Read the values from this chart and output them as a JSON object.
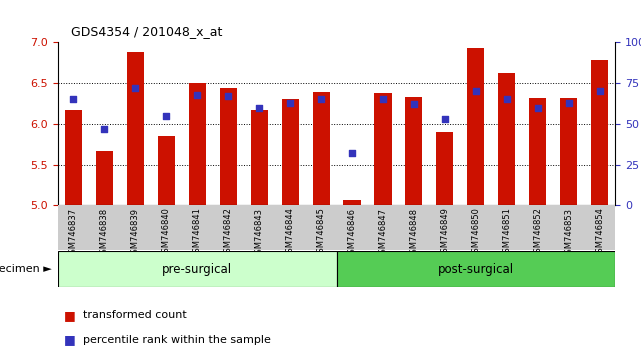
{
  "title": "GDS4354 / 201048_x_at",
  "samples": [
    "GSM746837",
    "GSM746838",
    "GSM746839",
    "GSM746840",
    "GSM746841",
    "GSM746842",
    "GSM746843",
    "GSM746844",
    "GSM746845",
    "GSM746846",
    "GSM746847",
    "GSM746848",
    "GSM746849",
    "GSM746850",
    "GSM746851",
    "GSM746852",
    "GSM746853",
    "GSM746854"
  ],
  "bar_values": [
    6.17,
    5.67,
    6.88,
    5.85,
    6.5,
    6.44,
    6.17,
    6.31,
    6.39,
    5.07,
    6.38,
    6.33,
    5.9,
    6.93,
    6.62,
    6.32,
    6.32,
    6.78
  ],
  "percentile_values": [
    65,
    47,
    72,
    55,
    68,
    67,
    60,
    63,
    65,
    32,
    65,
    62,
    53,
    70,
    65,
    60,
    63,
    70
  ],
  "ymin": 5.0,
  "ymax": 7.0,
  "yticks_left": [
    5.0,
    5.5,
    6.0,
    6.5,
    7.0
  ],
  "grid_yticks": [
    5.5,
    6.0,
    6.5
  ],
  "right_ytick_vals": [
    0,
    25,
    50,
    75,
    100
  ],
  "right_ytick_labels": [
    "0",
    "25",
    "50",
    "75",
    "100%"
  ],
  "bar_color": "#cc1100",
  "dot_color": "#3333bb",
  "bar_bottom": 5.0,
  "group1_label": "pre-surgical",
  "group2_label": "post-surgical",
  "group1_count": 9,
  "group2_count": 9,
  "legend1": "transformed count",
  "legend2": "percentile rank within the sample",
  "group_label": "specimen",
  "group1_color": "#ccffcc",
  "group2_color": "#55cc55",
  "tick_bg_color": "#cccccc",
  "fig_width": 6.41,
  "fig_height": 3.54
}
